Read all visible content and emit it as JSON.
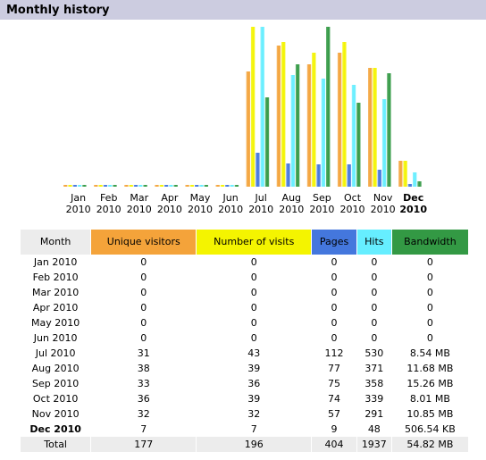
{
  "header": {
    "title": "Monthly history"
  },
  "colors": {
    "unique_visitors": "#f4a33a",
    "visits": "#f4f400",
    "pages": "#4477dd",
    "hits": "#66eeff",
    "bandwidth": "#339944",
    "header_bg": "#cccce0"
  },
  "chart_data": {
    "type": "bar",
    "title": "",
    "categories": [
      "Jan 2010",
      "Feb 2010",
      "Mar 2010",
      "Apr 2010",
      "May 2010",
      "Jun 2010",
      "Jul 2010",
      "Aug 2010",
      "Sep 2010",
      "Oct 2010",
      "Nov 2010",
      "Dec 2010"
    ],
    "month_labels": [
      "Jan",
      "Feb",
      "Mar",
      "Apr",
      "May",
      "Jun",
      "Jul",
      "Aug",
      "Sep",
      "Oct",
      "Nov",
      "Dec"
    ],
    "year_labels": [
      "2010",
      "2010",
      "2010",
      "2010",
      "2010",
      "2010",
      "2010",
      "2010",
      "2010",
      "2010",
      "2010",
      "2010"
    ],
    "current_index": 11,
    "series": [
      {
        "key": "unique_visitors",
        "values": [
          0,
          0,
          0,
          0,
          0,
          0,
          31,
          38,
          33,
          36,
          32,
          7
        ]
      },
      {
        "key": "visits",
        "values": [
          0,
          0,
          0,
          0,
          0,
          0,
          43,
          39,
          36,
          39,
          32,
          7
        ]
      },
      {
        "key": "pages",
        "values": [
          0,
          0,
          0,
          0,
          0,
          0,
          112,
          77,
          75,
          74,
          57,
          9
        ]
      },
      {
        "key": "hits",
        "values": [
          0,
          0,
          0,
          0,
          0,
          0,
          530,
          371,
          358,
          339,
          291,
          48
        ]
      },
      {
        "key": "bandwidth",
        "values": [
          0,
          0,
          0,
          0,
          0,
          0,
          8.54,
          11.68,
          15.26,
          8.01,
          10.85,
          0.49
        ]
      }
    ],
    "scale_groups": [
      [
        "unique_visitors",
        "visits"
      ],
      [
        "pages",
        "hits"
      ],
      [
        "bandwidth"
      ]
    ],
    "legend": "none",
    "grid": false
  },
  "table": {
    "headers": {
      "month": "Month",
      "unique_visitors": "Unique visitors",
      "visits": "Number of visits",
      "pages": "Pages",
      "hits": "Hits",
      "bandwidth": "Bandwidth"
    },
    "rows": [
      {
        "month": "Jan 2010",
        "uv": "0",
        "visits": "0",
        "pages": "0",
        "hits": "0",
        "bw": "0"
      },
      {
        "month": "Feb 2010",
        "uv": "0",
        "visits": "0",
        "pages": "0",
        "hits": "0",
        "bw": "0"
      },
      {
        "month": "Mar 2010",
        "uv": "0",
        "visits": "0",
        "pages": "0",
        "hits": "0",
        "bw": "0"
      },
      {
        "month": "Apr 2010",
        "uv": "0",
        "visits": "0",
        "pages": "0",
        "hits": "0",
        "bw": "0"
      },
      {
        "month": "May 2010",
        "uv": "0",
        "visits": "0",
        "pages": "0",
        "hits": "0",
        "bw": "0"
      },
      {
        "month": "Jun 2010",
        "uv": "0",
        "visits": "0",
        "pages": "0",
        "hits": "0",
        "bw": "0"
      },
      {
        "month": "Jul 2010",
        "uv": "31",
        "visits": "43",
        "pages": "112",
        "hits": "530",
        "bw": "8.54 MB"
      },
      {
        "month": "Aug 2010",
        "uv": "38",
        "visits": "39",
        "pages": "77",
        "hits": "371",
        "bw": "11.68 MB"
      },
      {
        "month": "Sep 2010",
        "uv": "33",
        "visits": "36",
        "pages": "75",
        "hits": "358",
        "bw": "15.26 MB"
      },
      {
        "month": "Oct 2010",
        "uv": "36",
        "visits": "39",
        "pages": "74",
        "hits": "339",
        "bw": "8.01 MB"
      },
      {
        "month": "Nov 2010",
        "uv": "32",
        "visits": "32",
        "pages": "57",
        "hits": "291",
        "bw": "10.85 MB"
      },
      {
        "month": "Dec 2010",
        "uv": "7",
        "visits": "7",
        "pages": "9",
        "hits": "48",
        "bw": "506.54 KB"
      }
    ],
    "total": {
      "month": "Total",
      "uv": "177",
      "visits": "196",
      "pages": "404",
      "hits": "1937",
      "bw": "54.82 MB"
    }
  }
}
